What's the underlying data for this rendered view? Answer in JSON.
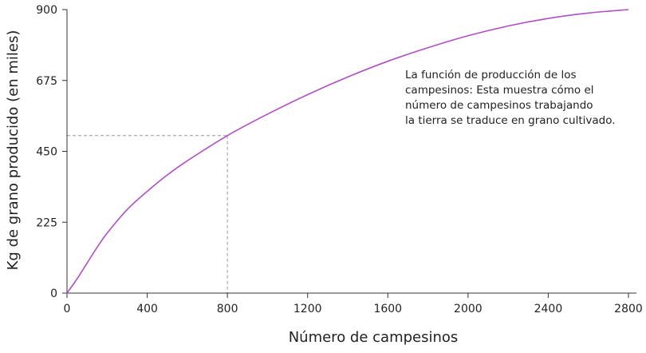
{
  "chart_data": {
    "type": "line",
    "xlabel": "Número de campesinos",
    "ylabel": "Kg de grano producido (en miles)",
    "xlim": [
      0,
      2800
    ],
    "ylim": [
      0,
      900
    ],
    "x_ticks": [
      "0",
      "400",
      "800",
      "1200",
      "1600",
      "2000",
      "2400",
      "2800"
    ],
    "y_ticks": [
      "0",
      "225",
      "450",
      "675",
      "900"
    ],
    "grid": false,
    "series": [
      {
        "color": "#b04fc4",
        "x": [
          0,
          50,
          100,
          150,
          200,
          300,
          400,
          500,
          600,
          800,
          1000,
          1200,
          1400,
          1600,
          1800,
          2000,
          2200,
          2400,
          2600,
          2800
        ],
        "y": [
          0,
          45,
          95,
          145,
          190,
          265,
          323,
          375,
          420,
          500,
          568,
          630,
          686,
          736,
          779,
          817,
          848,
          872,
          889,
          900
        ]
      }
    ],
    "reference_point": {
      "x": 800,
      "y": 500
    },
    "annotation": {
      "lines": [
        "La función de producción de los",
        "campesinos: Esta muestra cómo el",
        "número de campesinos trabajando",
        "la tierra se traduce en grano cultivado."
      ]
    }
  }
}
